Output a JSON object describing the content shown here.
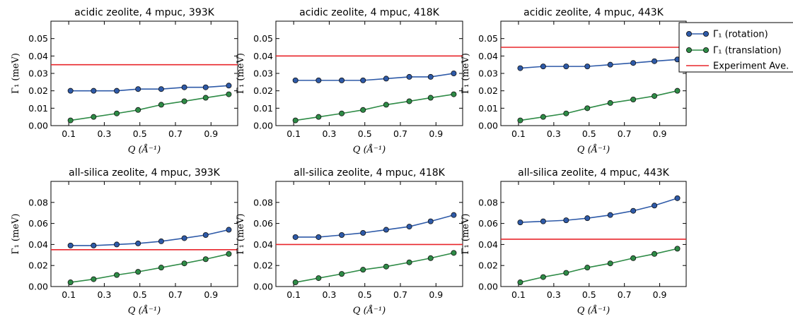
{
  "colors": {
    "rotation": "#2e5aa8",
    "translation": "#2e8b46",
    "experiment": "#e8262b",
    "marker_edge": "#111111"
  },
  "legend": {
    "rotation_label": "Γ₁ (rotation)",
    "translation_label": "Γ₁ (translation)",
    "experiment_label": "Experiment Ave."
  },
  "chart_data": [
    {
      "type": "line",
      "title": "acidic zeolite, 4 mpuc, 393K",
      "xlabel": "Q (Å⁻¹)",
      "ylabel": "Γ₁ (meV)",
      "xlim": [
        0,
        1.05
      ],
      "ylim": [
        0,
        0.06
      ],
      "xticks": [
        "0.1",
        "0.3",
        "0.5",
        "0.7",
        "0.9"
      ],
      "yticks": [
        "0.00",
        "0.01",
        "0.02",
        "0.03",
        "0.04",
        "0.05"
      ],
      "experiment_ave": 0.035,
      "x": [
        0.11,
        0.24,
        0.37,
        0.49,
        0.62,
        0.75,
        0.87,
        1.0
      ],
      "series": [
        {
          "name": "Γ₁ (rotation)",
          "values": [
            0.02,
            0.02,
            0.02,
            0.021,
            0.021,
            0.022,
            0.022,
            0.023
          ]
        },
        {
          "name": "Γ₁ (translation)",
          "values": [
            0.003,
            0.005,
            0.007,
            0.009,
            0.012,
            0.014,
            0.016,
            0.018
          ]
        }
      ]
    },
    {
      "type": "line",
      "title": "acidic zeolite, 4 mpuc, 418K",
      "xlabel": "Q (Å⁻¹)",
      "ylabel": "Γ₁ (meV)",
      "xlim": [
        0,
        1.05
      ],
      "ylim": [
        0,
        0.06
      ],
      "xticks": [
        "0.1",
        "0.3",
        "0.5",
        "0.7",
        "0.9"
      ],
      "yticks": [
        "0.00",
        "0.01",
        "0.02",
        "0.03",
        "0.04",
        "0.05"
      ],
      "experiment_ave": 0.04,
      "x": [
        0.11,
        0.24,
        0.37,
        0.49,
        0.62,
        0.75,
        0.87,
        1.0
      ],
      "series": [
        {
          "name": "Γ₁ (rotation)",
          "values": [
            0.026,
            0.026,
            0.026,
            0.026,
            0.027,
            0.028,
            0.028,
            0.03
          ]
        },
        {
          "name": "Γ₁ (translation)",
          "values": [
            0.003,
            0.005,
            0.007,
            0.009,
            0.012,
            0.014,
            0.016,
            0.018
          ]
        }
      ]
    },
    {
      "type": "line",
      "title": "acidic zeolite, 4 mpuc, 443K",
      "xlabel": "Q (Å⁻¹)",
      "ylabel": "Γ₁ (meV)",
      "xlim": [
        0,
        1.05
      ],
      "ylim": [
        0,
        0.06
      ],
      "xticks": [
        "0.1",
        "0.3",
        "0.5",
        "0.7",
        "0.9"
      ],
      "yticks": [
        "0.00",
        "0.01",
        "0.02",
        "0.03",
        "0.04",
        "0.05"
      ],
      "experiment_ave": 0.045,
      "x": [
        0.11,
        0.24,
        0.37,
        0.49,
        0.62,
        0.75,
        0.87,
        1.0
      ],
      "series": [
        {
          "name": "Γ₁ (rotation)",
          "values": [
            0.033,
            0.034,
            0.034,
            0.034,
            0.035,
            0.036,
            0.037,
            0.038
          ]
        },
        {
          "name": "Γ₁ (translation)",
          "values": [
            0.003,
            0.005,
            0.007,
            0.01,
            0.013,
            0.015,
            0.017,
            0.02
          ]
        }
      ]
    },
    {
      "type": "line",
      "title": "all-silica zeolite, 4 mpuc, 393K",
      "xlabel": "Q (Å⁻¹)",
      "ylabel": "Γ₁ (meV)",
      "xlim": [
        0,
        1.05
      ],
      "ylim": [
        0,
        0.1
      ],
      "xticks": [
        "0.1",
        "0.3",
        "0.5",
        "0.7",
        "0.9"
      ],
      "yticks": [
        "0.00",
        "0.02",
        "0.04",
        "0.06",
        "0.08"
      ],
      "experiment_ave": 0.035,
      "x": [
        0.11,
        0.24,
        0.37,
        0.49,
        0.62,
        0.75,
        0.87,
        1.0
      ],
      "series": [
        {
          "name": "Γ₁ (rotation)",
          "values": [
            0.039,
            0.039,
            0.04,
            0.041,
            0.043,
            0.046,
            0.049,
            0.054
          ]
        },
        {
          "name": "Γ₁ (translation)",
          "values": [
            0.004,
            0.007,
            0.011,
            0.014,
            0.018,
            0.022,
            0.026,
            0.031
          ]
        }
      ]
    },
    {
      "type": "line",
      "title": "all-silica zeolite, 4 mpuc, 418K",
      "xlabel": "Q (Å⁻¹)",
      "ylabel": "Γ₁ (meV)",
      "xlim": [
        0,
        1.05
      ],
      "ylim": [
        0,
        0.1
      ],
      "xticks": [
        "0.1",
        "0.3",
        "0.5",
        "0.7",
        "0.9"
      ],
      "yticks": [
        "0.00",
        "0.02",
        "0.04",
        "0.06",
        "0.08"
      ],
      "experiment_ave": 0.04,
      "x": [
        0.11,
        0.24,
        0.37,
        0.49,
        0.62,
        0.75,
        0.87,
        1.0
      ],
      "series": [
        {
          "name": "Γ₁ (rotation)",
          "values": [
            0.047,
            0.047,
            0.049,
            0.051,
            0.054,
            0.057,
            0.062,
            0.068
          ]
        },
        {
          "name": "Γ₁ (translation)",
          "values": [
            0.004,
            0.008,
            0.012,
            0.016,
            0.019,
            0.023,
            0.027,
            0.032
          ]
        }
      ]
    },
    {
      "type": "line",
      "title": "all-silica zeolite, 4 mpuc, 443K",
      "xlabel": "Q (Å⁻¹)",
      "ylabel": "Γ₁ (meV)",
      "xlim": [
        0,
        1.05
      ],
      "ylim": [
        0,
        0.1
      ],
      "xticks": [
        "0.1",
        "0.3",
        "0.5",
        "0.7",
        "0.9"
      ],
      "yticks": [
        "0.00",
        "0.02",
        "0.04",
        "0.06",
        "0.08"
      ],
      "experiment_ave": 0.045,
      "x": [
        0.11,
        0.24,
        0.37,
        0.49,
        0.62,
        0.75,
        0.87,
        1.0
      ],
      "series": [
        {
          "name": "Γ₁ (rotation)",
          "values": [
            0.061,
            0.062,
            0.063,
            0.065,
            0.068,
            0.072,
            0.077,
            0.084
          ]
        },
        {
          "name": "Γ₁ (translation)",
          "values": [
            0.004,
            0.009,
            0.013,
            0.018,
            0.022,
            0.027,
            0.031,
            0.036
          ]
        }
      ]
    }
  ]
}
